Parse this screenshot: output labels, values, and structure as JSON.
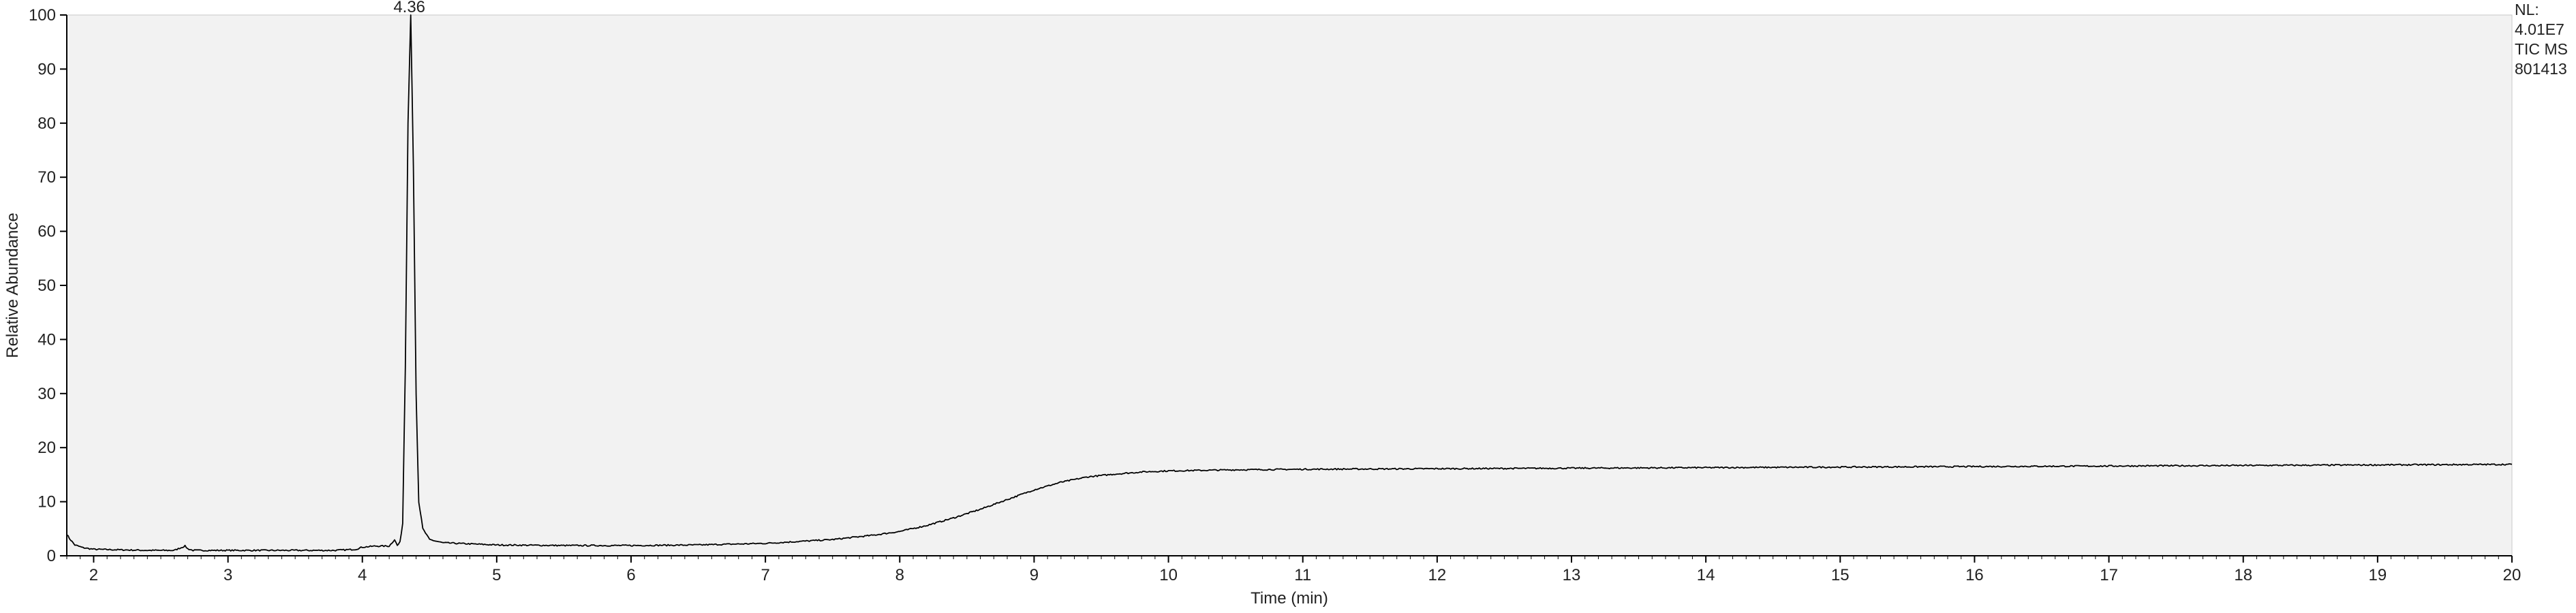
{
  "chart_data": {
    "type": "line",
    "title": "",
    "xlabel": "Time (min)",
    "ylabel": "Relative Abundance",
    "xlim": [
      1.8,
      20
    ],
    "ylim": [
      0,
      100
    ],
    "x_ticks": [
      2,
      3,
      4,
      5,
      6,
      7,
      8,
      9,
      10,
      11,
      12,
      13,
      14,
      15,
      16,
      17,
      18,
      19,
      20
    ],
    "y_ticks": [
      0,
      10,
      20,
      30,
      40,
      50,
      60,
      70,
      80,
      90,
      100
    ],
    "grid": false,
    "legend": "none",
    "colors": {
      "background": "#f2f2f2",
      "trace": "#000000",
      "axis": "#000000"
    },
    "annotations": [
      {
        "text": "4.36",
        "x": 4.36,
        "y": 100
      }
    ],
    "info": [
      "NL:",
      "4.01E7",
      "TIC MS",
      "801413"
    ],
    "series": [
      {
        "x": [
          1.8,
          1.82,
          1.86,
          1.92,
          2.0,
          2.2,
          2.4,
          2.6,
          2.66,
          2.68,
          2.7,
          2.74,
          2.8,
          3.0,
          3.4,
          3.8,
          3.95,
          4.0,
          4.1,
          4.2,
          4.24,
          4.26,
          4.28,
          4.3,
          4.32,
          4.34,
          4.36,
          4.38,
          4.4,
          4.42,
          4.45,
          4.5,
          4.6,
          4.8,
          5.0,
          5.5,
          6.0,
          6.5,
          7.0,
          7.5,
          7.8,
          8.0,
          8.2,
          8.4,
          8.6,
          8.8,
          9.0,
          9.2,
          9.4,
          9.6,
          9.8,
          10.0,
          10.5,
          11.0,
          12.0,
          13.0,
          14.0,
          15.0,
          16.0,
          17.0,
          18.0,
          19.0,
          20.0
        ],
        "y": [
          4.0,
          3.2,
          2.0,
          1.5,
          1.2,
          1.1,
          1.0,
          1.0,
          1.6,
          1.8,
          1.3,
          1.0,
          1.0,
          1.0,
          1.0,
          1.0,
          1.2,
          1.6,
          1.8,
          1.8,
          3.0,
          1.9,
          2.5,
          6.0,
          35.0,
          80.0,
          100.0,
          72.0,
          30.0,
          10.0,
          5.0,
          3.0,
          2.4,
          2.2,
          2.0,
          1.9,
          1.9,
          2.0,
          2.3,
          3.0,
          3.8,
          4.5,
          5.6,
          7.0,
          8.6,
          10.4,
          12.2,
          13.6,
          14.6,
          15.1,
          15.5,
          15.7,
          15.9,
          16.0,
          16.1,
          16.2,
          16.3,
          16.4,
          16.5,
          16.6,
          16.7,
          16.8,
          16.9
        ]
      }
    ]
  }
}
